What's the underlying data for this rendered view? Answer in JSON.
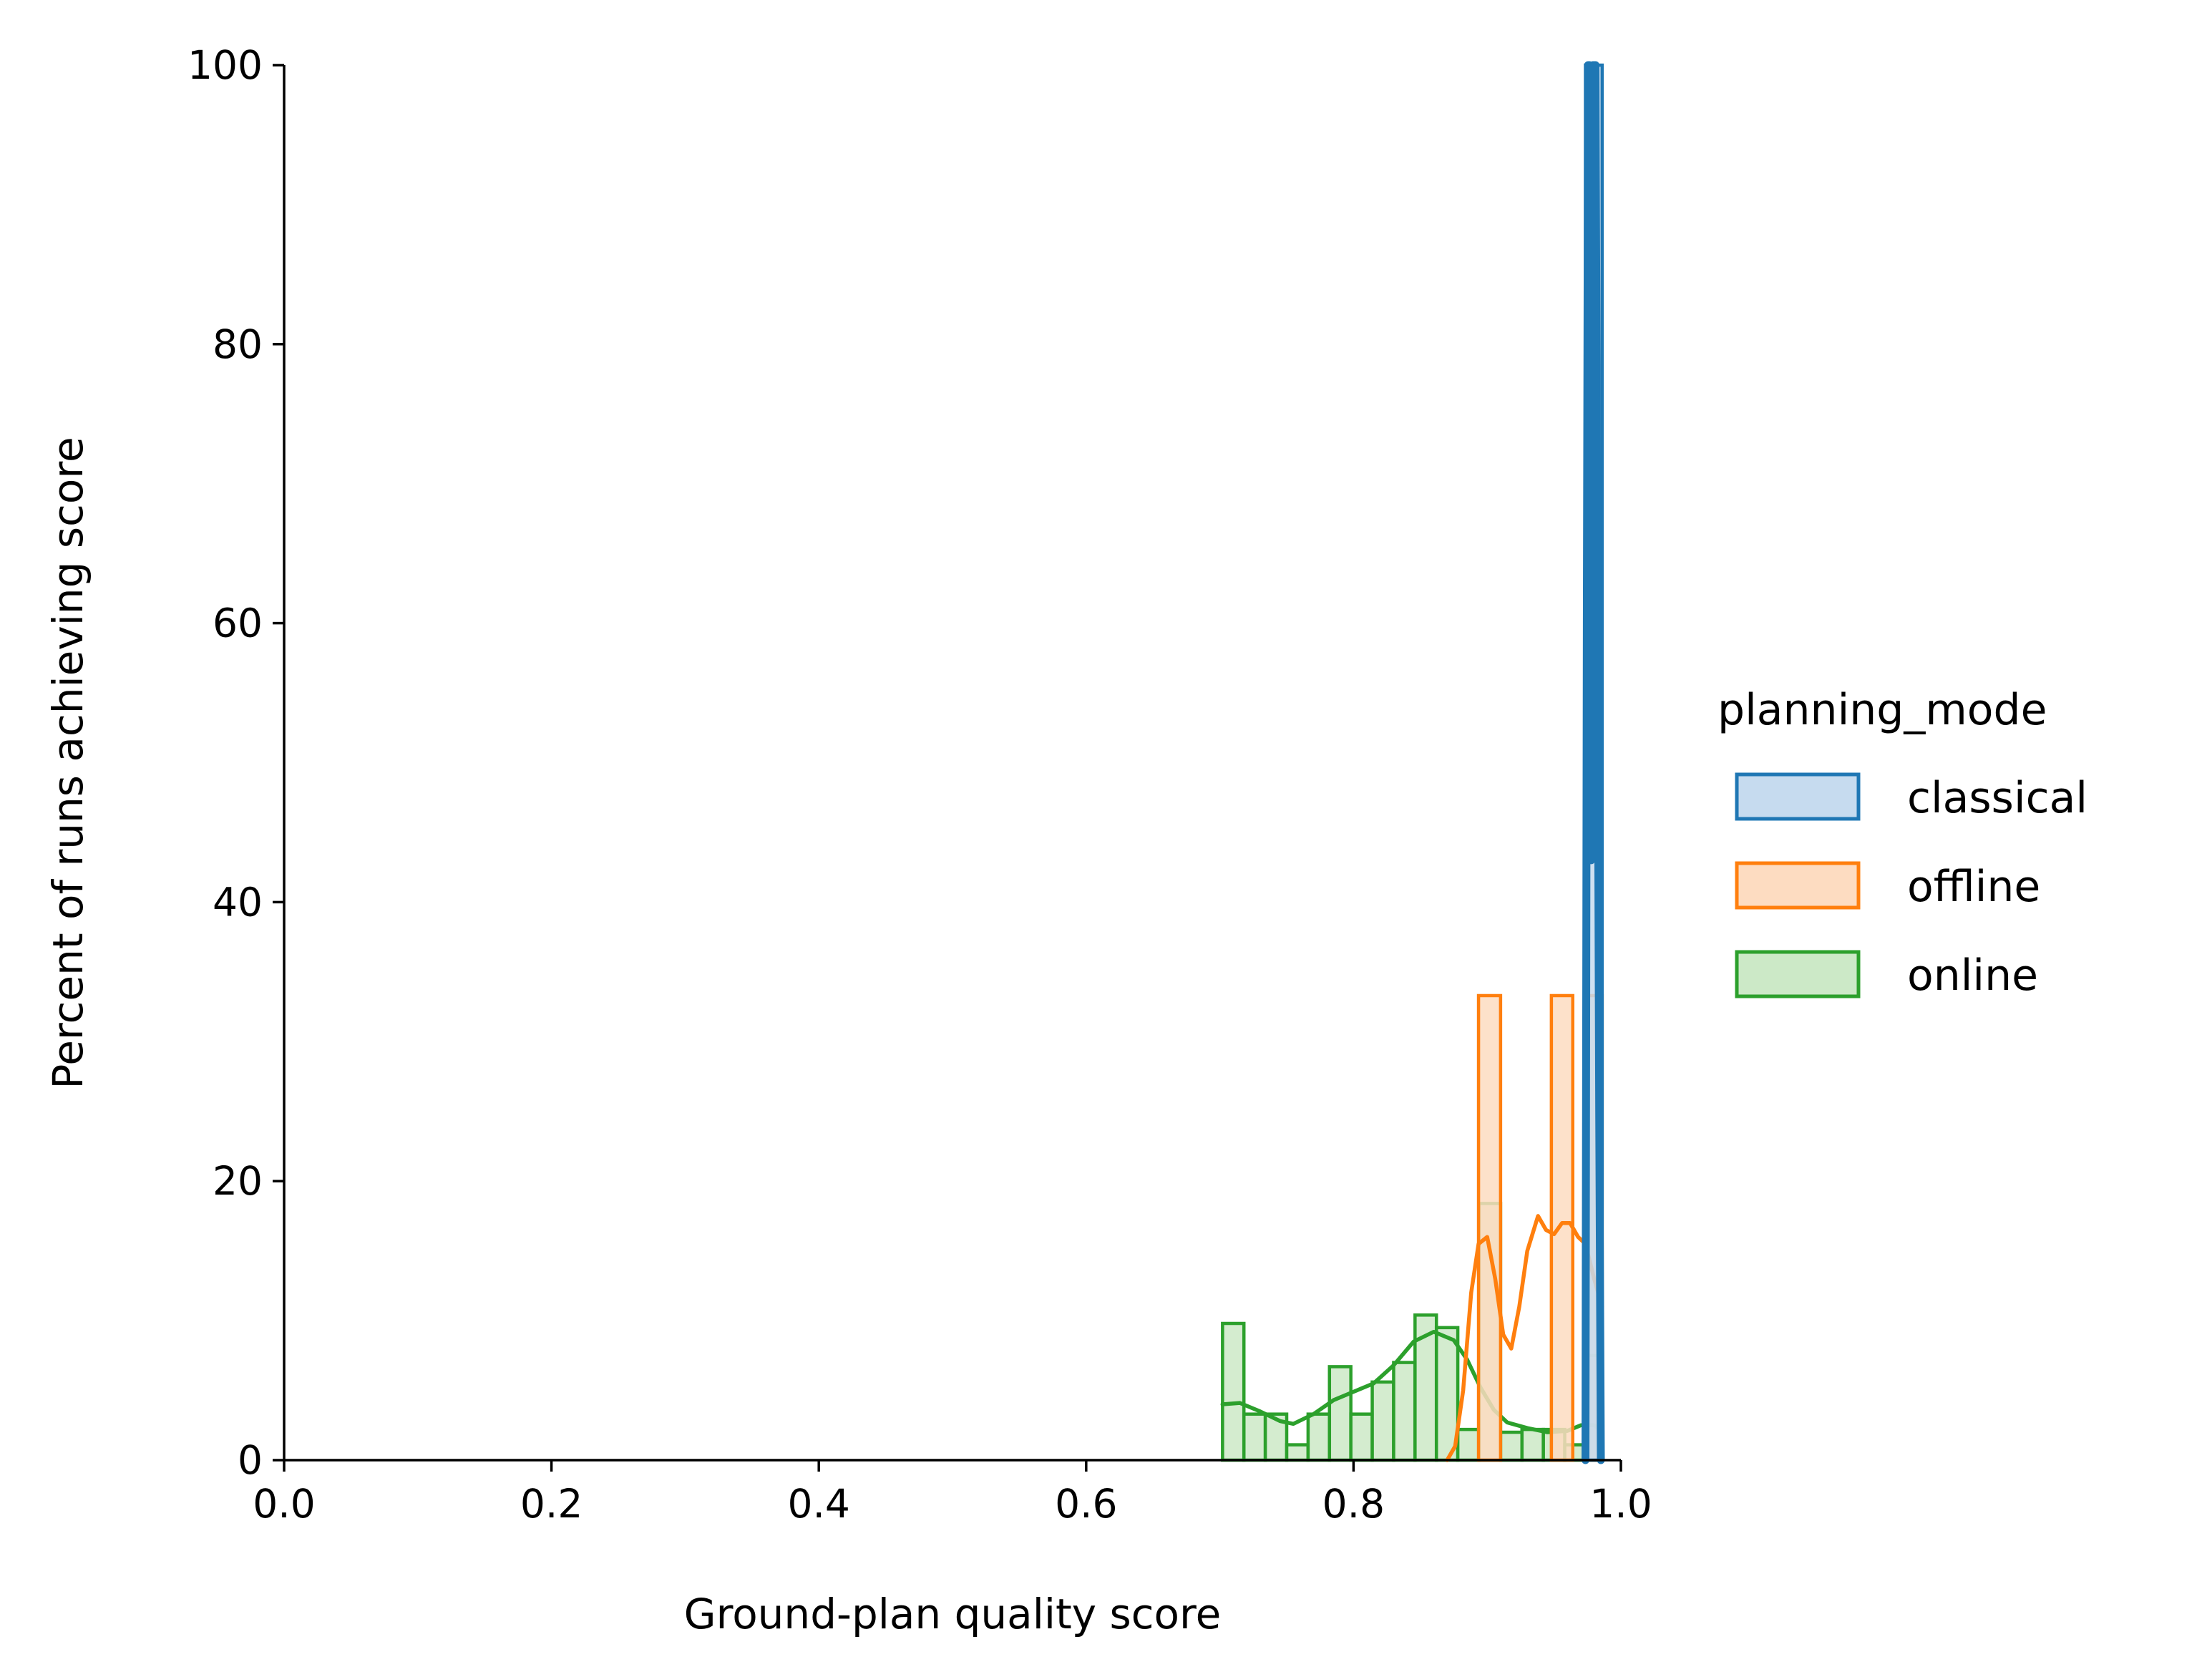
{
  "chart_data": {
    "type": "histogram",
    "xlabel": "Ground-plan quality score",
    "ylabel": "Percent of runs achieving score",
    "xlim": [
      0.0,
      1.0
    ],
    "ylim": [
      0,
      100
    ],
    "xticks": [
      "0.0",
      "0.2",
      "0.4",
      "0.6",
      "0.8",
      "1.0"
    ],
    "yticks": [
      "0",
      "20",
      "40",
      "60",
      "80",
      "100"
    ],
    "stat": "percent",
    "element": "step",
    "fill": true,
    "kde": true,
    "grid": false,
    "legend": {
      "title": "planning_mode",
      "placement": "right",
      "entries": [
        "classical",
        "offline",
        "online"
      ]
    },
    "series": [
      {
        "name": "classical",
        "color": "#1f77b4",
        "fill_color": "#c6dbef",
        "bins": [
          [
            0.9735,
            0.986,
            100
          ]
        ],
        "kde": [
          [
            0.9735,
            0
          ],
          [
            0.9745,
            60
          ],
          [
            0.9755,
            100
          ],
          [
            0.9765,
            100
          ],
          [
            0.9772,
            55
          ],
          [
            0.9778,
            43
          ],
          [
            0.9784,
            55
          ],
          [
            0.979,
            100
          ],
          [
            0.981,
            100
          ],
          [
            0.9825,
            60
          ],
          [
            0.9838,
            25
          ],
          [
            0.985,
            0
          ]
        ]
      },
      {
        "name": "offline",
        "color": "#ff7f0e",
        "fill_color": "#fddcc1",
        "bins": [
          [
            0.8935,
            0.91,
            33.3
          ],
          [
            0.91,
            0.932,
            0
          ],
          [
            0.932,
            0.948,
            0
          ],
          [
            0.948,
            0.964,
            33.3
          ],
          [
            0.964,
            0.9735,
            0
          ],
          [
            0.9735,
            0.986,
            33.3
          ]
        ],
        "kde": [
          [
            0.87,
            0
          ],
          [
            0.876,
            1
          ],
          [
            0.882,
            5
          ],
          [
            0.888,
            12
          ],
          [
            0.8935,
            15.5
          ],
          [
            0.9,
            16
          ],
          [
            0.906,
            13
          ],
          [
            0.912,
            9
          ],
          [
            0.918,
            8
          ],
          [
            0.924,
            11
          ],
          [
            0.93,
            15
          ],
          [
            0.938,
            17.5
          ],
          [
            0.944,
            16.5
          ],
          [
            0.95,
            16.2
          ],
          [
            0.956,
            17
          ],
          [
            0.962,
            17
          ],
          [
            0.968,
            16
          ],
          [
            0.9735,
            15.5
          ],
          [
            0.98,
            13
          ],
          [
            0.986,
            11
          ]
        ]
      },
      {
        "name": "online",
        "color": "#2ca02c",
        "fill_color": "#cce9c7",
        "bins": [
          [
            0.702,
            0.718,
            9.8
          ],
          [
            0.718,
            0.734,
            3.3
          ],
          [
            0.734,
            0.75,
            3.3
          ],
          [
            0.75,
            0.766,
            1.1
          ],
          [
            0.766,
            0.782,
            3.3
          ],
          [
            0.782,
            0.798,
            6.7
          ],
          [
            0.798,
            0.814,
            3.3
          ],
          [
            0.814,
            0.83,
            5.6
          ],
          [
            0.83,
            0.846,
            7.0
          ],
          [
            0.846,
            0.862,
            10.4
          ],
          [
            0.862,
            0.878,
            9.5
          ],
          [
            0.878,
            0.8938,
            2.2
          ],
          [
            0.8938,
            0.91,
            18.4
          ],
          [
            0.91,
            0.926,
            2.0
          ],
          [
            0.926,
            0.942,
            2.2
          ],
          [
            0.942,
            0.958,
            2.2
          ],
          [
            0.958,
            0.9735,
            1.1
          ],
          [
            0.9735,
            0.986,
            7.5
          ]
        ],
        "kde": [
          [
            0.702,
            4.0
          ],
          [
            0.715,
            4.1
          ],
          [
            0.73,
            3.5
          ],
          [
            0.745,
            2.8
          ],
          [
            0.755,
            2.6
          ],
          [
            0.77,
            3.3
          ],
          [
            0.785,
            4.3
          ],
          [
            0.8,
            4.9
          ],
          [
            0.815,
            5.5
          ],
          [
            0.83,
            6.8
          ],
          [
            0.845,
            8.5
          ],
          [
            0.86,
            9.2
          ],
          [
            0.875,
            8.6
          ],
          [
            0.885,
            7.2
          ],
          [
            0.895,
            5.2
          ],
          [
            0.905,
            3.6
          ],
          [
            0.915,
            2.7
          ],
          [
            0.93,
            2.3
          ],
          [
            0.945,
            2.0
          ],
          [
            0.96,
            2.1
          ],
          [
            0.97,
            2.5
          ],
          [
            0.98,
            2.5
          ],
          [
            0.986,
            2.1
          ]
        ]
      }
    ]
  }
}
